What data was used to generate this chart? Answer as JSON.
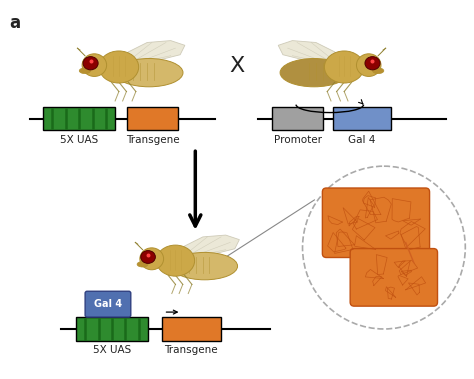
{
  "title": "a",
  "bg_color": "#ffffff",
  "green_color": "#2e8b2e",
  "orange_color": "#e07828",
  "gray_color": "#a0a0a0",
  "blue_color": "#7090c8",
  "dark_blue_color": "#5070b0",
  "text_color": "#222222",
  "fly_body_color": "#d4b86a",
  "fly_body_dark": "#b09040",
  "fly_thorax_color": "#c8a850",
  "fly_eye_color": "#8b0000",
  "fly_stripe_color": "#b09030",
  "wing_color": "#e8e4d0",
  "wing_edge_color": "#c8c4b0",
  "label_5xuas": "5X UAS",
  "label_transgene": "Transgene",
  "label_promoter": "Promoter",
  "label_gal4": "Gal 4",
  "label_x": "X"
}
